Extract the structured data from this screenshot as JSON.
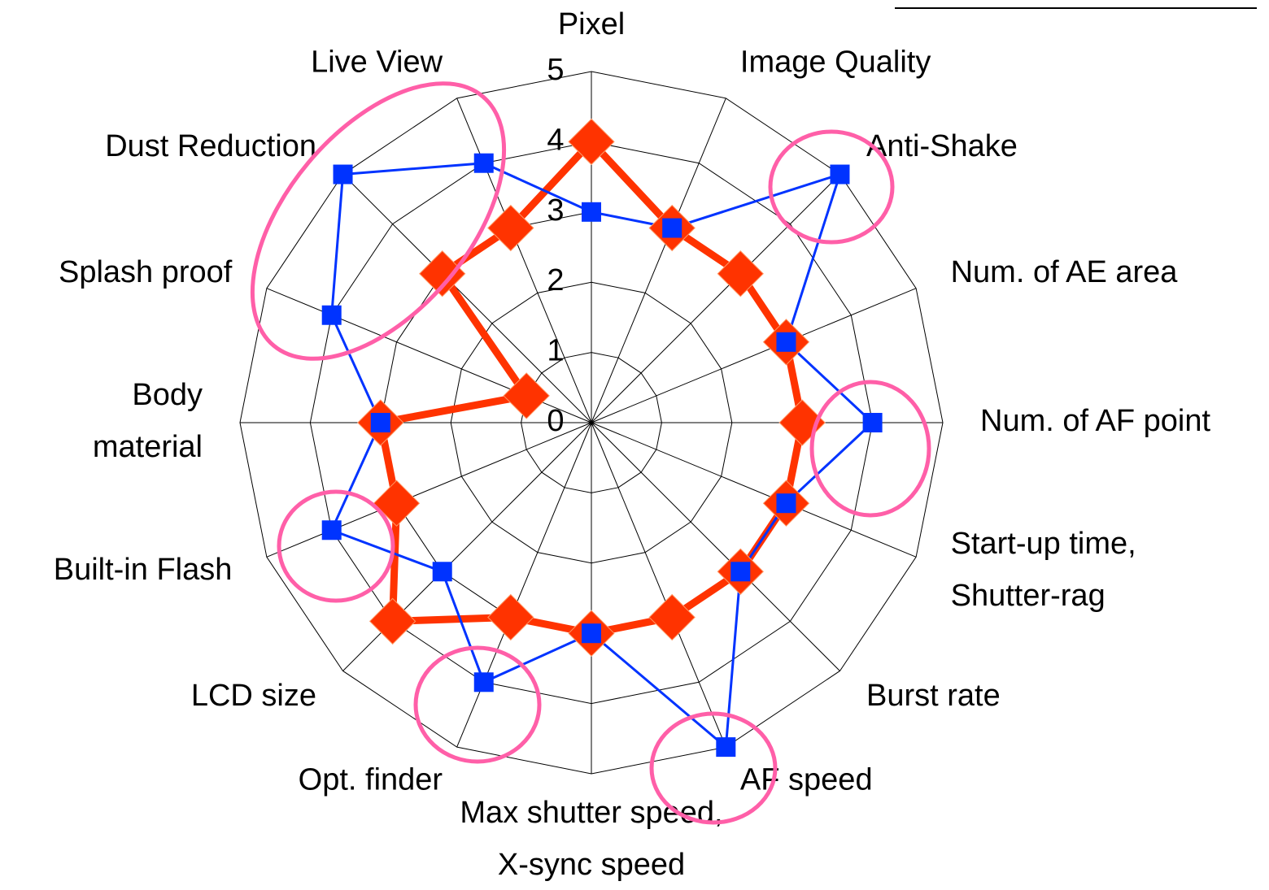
{
  "chart_data": {
    "type": "radar",
    "categories": [
      "Pixel",
      "Image Quality",
      "Anti-Shake",
      "Num. of AE area",
      "Num. of AF point",
      "Start-up time,\nShutter-rag",
      "Burst rate",
      "AF speed",
      "Max shutter speed,\nX-sync speed",
      "Opt. finder",
      "LCD size",
      "Built-in Flash",
      "Body\nmaterial",
      "Splash proof",
      "Dust Reduction",
      "Live View"
    ],
    "series": [
      {
        "color": "#ff3300",
        "marker": "diamond",
        "values": [
          4,
          3,
          3,
          3,
          3,
          3,
          3,
          3,
          3,
          3,
          4,
          3,
          3,
          1,
          3,
          3
        ]
      },
      {
        "color": "#0033ff",
        "marker": "square",
        "values": [
          3,
          3,
          5,
          3,
          4,
          3,
          3,
          5,
          3,
          4,
          3,
          4,
          3,
          4,
          5,
          4
        ]
      }
    ],
    "ylim": [
      0,
      5
    ],
    "yticks": [
      0,
      1,
      2,
      3,
      4,
      5
    ],
    "grid": true
  }
}
